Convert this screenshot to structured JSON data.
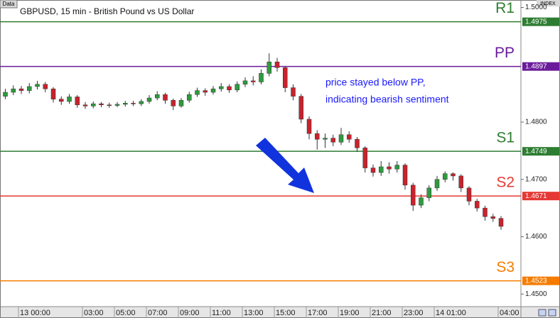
{
  "chart_data": {
    "type": "candlestick",
    "badge": "Data",
    "title": "GBPUSD, 15 min - British Pound vs US Dollar",
    "corner_label": "INDEX",
    "annotation": [
      "price stayed below PP,",
      "indicating bearish sentiment"
    ],
    "up_color": "#2e9b3e",
    "down_color": "#c8232c",
    "categories": [
      null,
      null,
      "13 00:00",
      null,
      null,
      null,
      null,
      null,
      null,
      null,
      "03:00",
      null,
      null,
      null,
      "05:00",
      null,
      null,
      null,
      "07:00",
      null,
      null,
      null,
      "09:00",
      null,
      null,
      null,
      "11:00",
      null,
      null,
      null,
      "13:00",
      null,
      null,
      null,
      "15:00",
      null,
      null,
      null,
      "17:00",
      null,
      null,
      null,
      "19:00",
      null,
      null,
      null,
      "21:00",
      null,
      null,
      null,
      "23:00",
      null,
      null,
      null,
      "14 01:00",
      null,
      null,
      null,
      null,
      null,
      null,
      null,
      "04:00"
    ],
    "open": [
      1.4845,
      1.4852,
      1.4858,
      1.4855,
      1.4862,
      1.4866,
      1.4858,
      1.484,
      1.4836,
      1.4844,
      1.483,
      1.4828,
      1.4832,
      1.483,
      1.4829,
      1.4831,
      1.4833,
      1.4832,
      1.4836,
      1.4842,
      1.4848,
      1.4838,
      1.4828,
      1.4838,
      1.4848,
      1.4855,
      1.4852,
      1.4858,
      1.4862,
      1.4856,
      1.4866,
      1.4872,
      1.487,
      1.4885,
      1.4905,
      1.4895,
      1.486,
      1.4845,
      1.4805,
      1.478,
      1.477,
      1.4772,
      1.4765,
      1.4778,
      1.477,
      1.4755,
      1.472,
      1.4712,
      1.4722,
      1.4718,
      1.4725,
      1.469,
      1.4655,
      1.4668,
      1.4685,
      1.47,
      1.471,
      1.4706,
      1.4685,
      1.4662,
      1.465,
      1.4635,
      1.4632
    ],
    "high": [
      1.4858,
      1.4864,
      1.4863,
      1.4868,
      1.4872,
      1.487,
      1.4861,
      1.4845,
      1.4849,
      1.4847,
      1.4835,
      1.4836,
      1.4835,
      1.4834,
      1.4835,
      1.4837,
      1.4837,
      1.484,
      1.4847,
      1.4854,
      1.4851,
      1.4841,
      1.4842,
      1.4853,
      1.486,
      1.4859,
      1.4863,
      1.4868,
      1.4866,
      1.4871,
      1.4878,
      1.488,
      1.4892,
      1.492,
      1.4912,
      1.4898,
      1.4866,
      1.4849,
      1.481,
      1.4786,
      1.478,
      1.4778,
      1.479,
      1.4784,
      1.4774,
      1.4758,
      1.4726,
      1.4732,
      1.473,
      1.4732,
      1.4728,
      1.4694,
      1.4674,
      1.469,
      1.4706,
      1.4714,
      1.4712,
      1.4709,
      1.4688,
      1.4666,
      1.4654,
      1.464,
      1.4636
    ],
    "low": [
      1.484,
      1.4847,
      1.4849,
      1.485,
      1.4857,
      1.4852,
      1.4834,
      1.483,
      1.4832,
      1.4825,
      1.4823,
      1.4824,
      1.4826,
      1.4825,
      1.4826,
      1.4827,
      1.4828,
      1.4828,
      1.4832,
      1.4838,
      1.4832,
      1.4821,
      1.4825,
      1.4834,
      1.4844,
      1.4846,
      1.4848,
      1.4853,
      1.4851,
      1.4852,
      1.4861,
      1.4864,
      1.4866,
      1.488,
      1.4888,
      1.4852,
      1.4838,
      1.4798,
      1.477,
      1.4752,
      1.4755,
      1.4758,
      1.476,
      1.4764,
      1.4748,
      1.4712,
      1.4705,
      1.4706,
      1.471,
      1.4712,
      1.4682,
      1.4645,
      1.465,
      1.4662,
      1.468,
      1.4695,
      1.4698,
      1.4678,
      1.4655,
      1.4644,
      1.4628,
      1.4626,
      1.4612
    ],
    "close": [
      1.4852,
      1.4858,
      1.4855,
      1.4862,
      1.4866,
      1.4858,
      1.484,
      1.4836,
      1.4844,
      1.483,
      1.4828,
      1.4832,
      1.483,
      1.4829,
      1.4831,
      1.4833,
      1.4832,
      1.4836,
      1.4842,
      1.4848,
      1.4838,
      1.4828,
      1.4838,
      1.4848,
      1.4855,
      1.4852,
      1.4858,
      1.4862,
      1.4856,
      1.4866,
      1.4872,
      1.487,
      1.4885,
      1.4905,
      1.4895,
      1.486,
      1.4845,
      1.4805,
      1.478,
      1.477,
      1.4772,
      1.4765,
      1.4778,
      1.477,
      1.4755,
      1.472,
      1.4712,
      1.4722,
      1.4718,
      1.4725,
      1.469,
      1.4655,
      1.4668,
      1.4685,
      1.47,
      1.471,
      1.4706,
      1.4685,
      1.4662,
      1.465,
      1.4635,
      1.4632,
      1.4618
    ],
    "levels": [
      {
        "name": "R1",
        "value": 1.4975,
        "color": "#2e7d32"
      },
      {
        "name": "PP",
        "value": 1.4897,
        "color": "#6a1b9a"
      },
      {
        "name": "S1",
        "value": 1.4749,
        "color": "#2e7d32"
      },
      {
        "name": "S2",
        "value": 1.4671,
        "color": "#e53935"
      },
      {
        "name": "S3",
        "value": 1.4523,
        "color": "#f57c00"
      }
    ],
    "ylim": [
      1.4478,
      1.5013
    ],
    "yticks": [
      {
        "value": 1.45,
        "label": "1.4500"
      },
      {
        "value": 1.46,
        "label": "1.4600"
      },
      {
        "value": 1.47,
        "label": "1.4700"
      },
      {
        "value": 1.48,
        "label": "1.4800"
      },
      {
        "value": 1.5,
        "label": "1.5000"
      }
    ]
  }
}
